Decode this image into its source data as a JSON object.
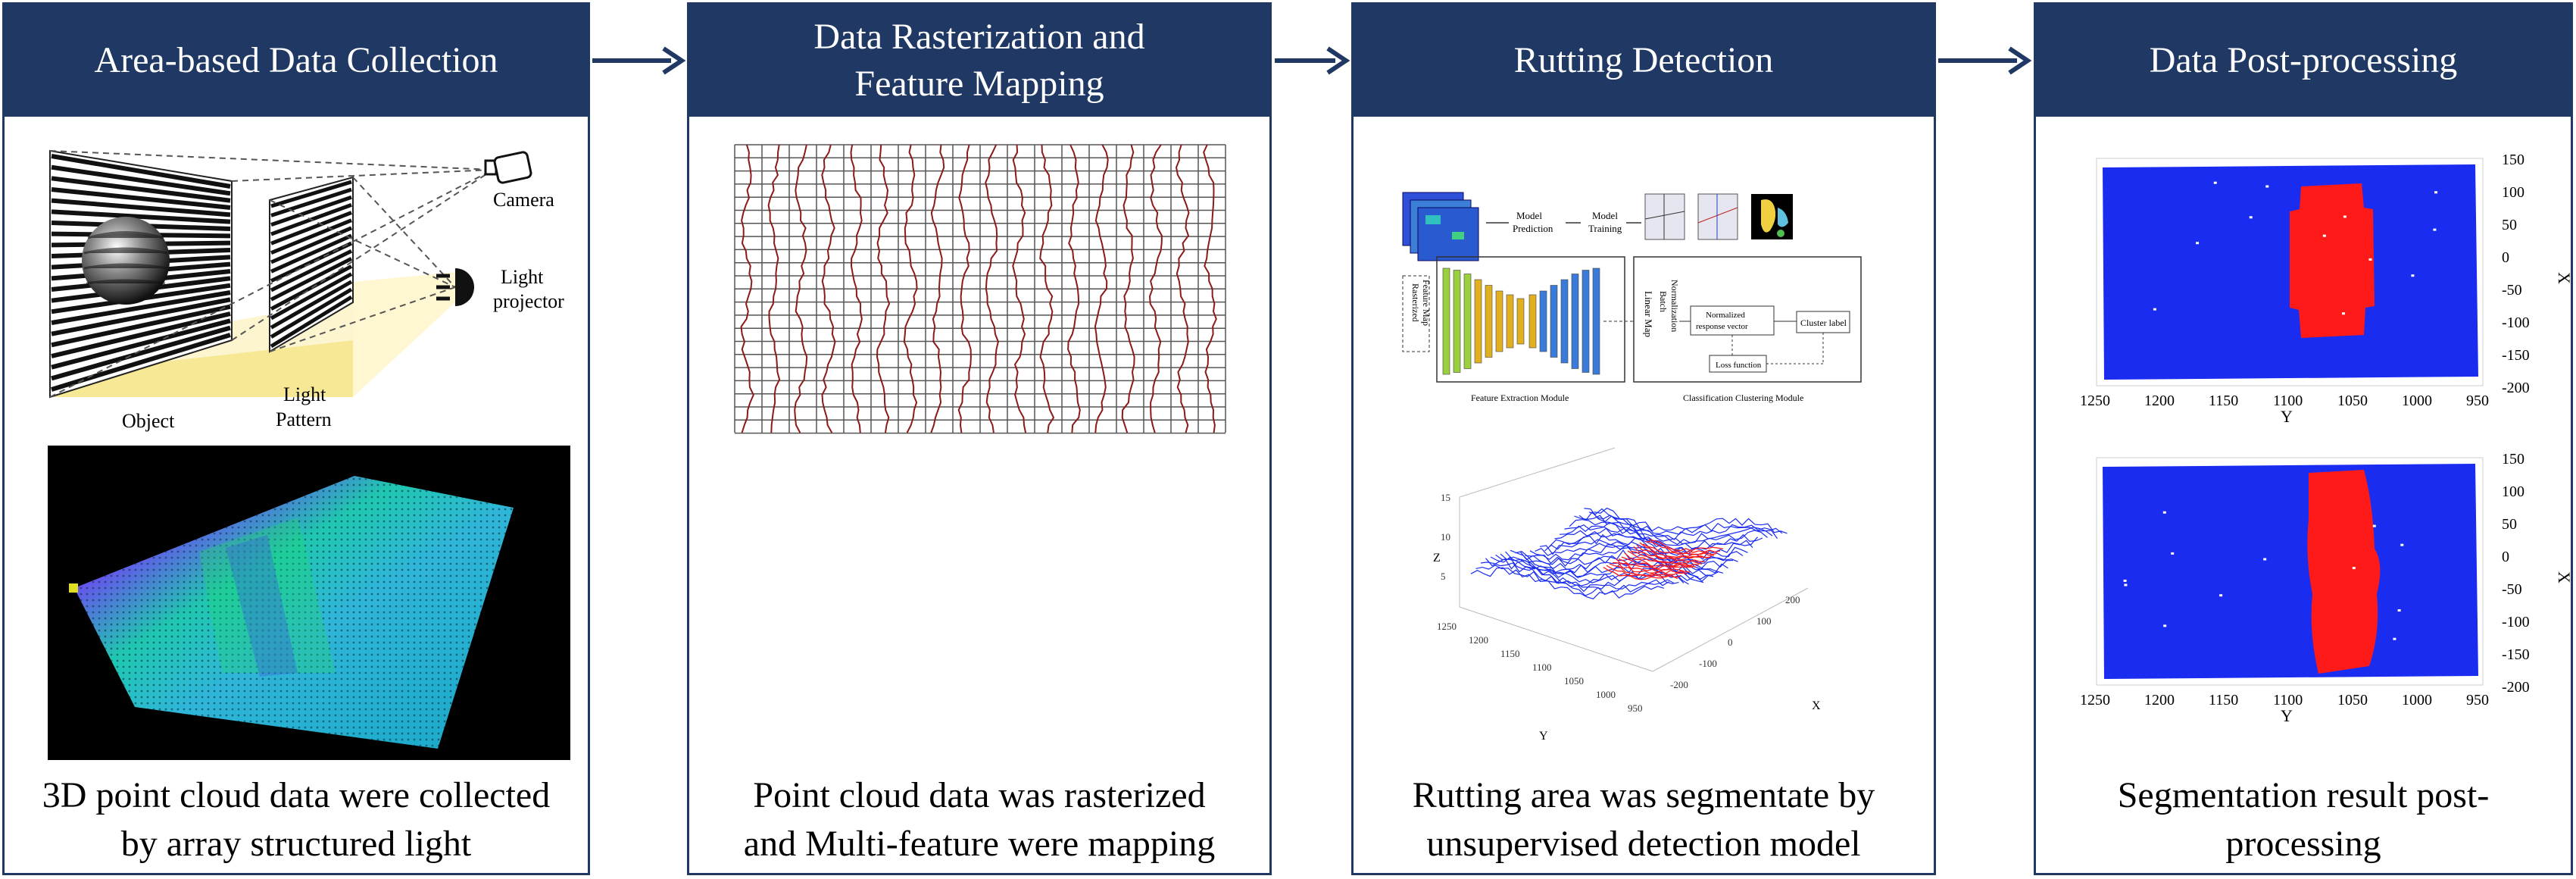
{
  "steps": [
    {
      "title": "Area-based Data Collection",
      "caption_line1": "3D point cloud data were collected",
      "caption_line2": "by array structured light"
    },
    {
      "title_line1": "Data Rasterization and",
      "title_line2": "Feature Mapping",
      "caption_line1": "Point cloud data was rasterized",
      "caption_line2": "and Multi-feature were mapping"
    },
    {
      "title": "Rutting Detection",
      "caption_line1": "Rutting area was segmentate by",
      "caption_line2": "unsupervised detection model"
    },
    {
      "title": "Data Post-processing",
      "caption_line1": "Segmentation result post-",
      "caption_line2": "processing"
    }
  ],
  "collection": {
    "camera": "Camera",
    "light": "Light",
    "projector": "projector",
    "object": "Object",
    "pattern_1": "Light",
    "pattern_2": "Pattern"
  },
  "model": {
    "model_prediction_1": "Model",
    "model_prediction_2": "Prediction",
    "model_training_1": "Model",
    "model_training_2": "Training",
    "rasterized_feature_map_1": "Rasterized",
    "rasterized_feature_map_2": "Feature Map",
    "linear_map": "Linear Map",
    "normalization_1": "Batch",
    "normalization_2": "Normalization",
    "normalized_vector_1": "Normalized",
    "normalized_vector_2": "response vector",
    "cluster_label": "Cluster label",
    "loss_function": "Loss function",
    "feature_extraction_module": "Feature Extraction Module",
    "classification_module": "Classification Clustering Module"
  },
  "plot3d": {
    "z_label": "Z",
    "y_label": "Y",
    "x_label": "X",
    "z_ticks": [
      "15",
      "10",
      "5"
    ],
    "y_ticks": [
      "1250",
      "1200",
      "1150",
      "1100",
      "1050",
      "1000",
      "950"
    ],
    "x_ticks": [
      "200",
      "100",
      "0",
      "-100",
      "-200"
    ]
  },
  "postproc": {
    "x_ticks": [
      "1250",
      "1200",
      "1150",
      "1100",
      "1050",
      "1000",
      "950"
    ],
    "y_ticks": [
      "150",
      "100",
      "50",
      "0",
      "-50",
      "-100",
      "-150",
      "-200"
    ],
    "x_label": "Y",
    "y_label": "X"
  },
  "colors": {
    "header": "#1f3864",
    "arrow": "#1f3864",
    "point_blue": "#1a2cf0",
    "rut_red": "#ff1a1a"
  }
}
